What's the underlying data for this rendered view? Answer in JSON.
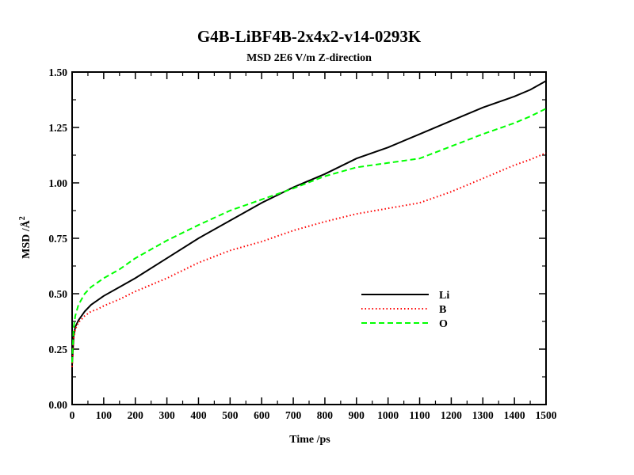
{
  "chart_data": {
    "type": "line",
    "title": "G4B-LiBF4B-2x4x2-v14-0293K",
    "subtitle": "MSD  2E6 V/m Z-direction",
    "xlabel": "Time /ps",
    "ylabel_main": "MSD /Å",
    "ylabel_sup": "2",
    "xlim": [
      0,
      1500
    ],
    "ylim": [
      0,
      1.5
    ],
    "xticks": [
      0,
      100,
      200,
      300,
      400,
      500,
      600,
      700,
      800,
      900,
      1000,
      1100,
      1200,
      1300,
      1400,
      1500
    ],
    "xtick_labels": [
      "0",
      "100",
      "200",
      "300",
      "400",
      "500",
      "600",
      "700",
      "800",
      "900",
      "1000",
      "1100",
      "1200",
      "1300",
      "1400",
      "1500"
    ],
    "yticks": [
      0,
      0.25,
      0.5,
      0.75,
      1.0,
      1.25,
      1.5
    ],
    "ytick_labels": [
      "0.00",
      "0.25",
      "0.50",
      "0.75",
      "1.00",
      "1.25",
      "1.50"
    ],
    "grid": false,
    "legend_position": "right-middle",
    "series": [
      {
        "name": "Li",
        "color": "#000000",
        "dash": "solid",
        "x": [
          0,
          5,
          10,
          20,
          40,
          60,
          80,
          100,
          150,
          200,
          300,
          400,
          500,
          600,
          700,
          800,
          900,
          1000,
          1100,
          1200,
          1300,
          1400,
          1450,
          1500
        ],
        "y": [
          0.18,
          0.31,
          0.35,
          0.38,
          0.42,
          0.45,
          0.47,
          0.49,
          0.53,
          0.57,
          0.66,
          0.75,
          0.83,
          0.91,
          0.98,
          1.04,
          1.11,
          1.16,
          1.22,
          1.28,
          1.34,
          1.39,
          1.42,
          1.46
        ]
      },
      {
        "name": "B",
        "color": "#ff0000",
        "dash": "dotted",
        "x": [
          0,
          5,
          10,
          20,
          40,
          60,
          80,
          100,
          150,
          200,
          300,
          400,
          500,
          600,
          700,
          800,
          900,
          1000,
          1100,
          1200,
          1300,
          1400,
          1450,
          1500
        ],
        "y": [
          0.17,
          0.3,
          0.34,
          0.37,
          0.4,
          0.42,
          0.43,
          0.445,
          0.475,
          0.51,
          0.57,
          0.64,
          0.695,
          0.735,
          0.785,
          0.825,
          0.86,
          0.885,
          0.91,
          0.96,
          1.02,
          1.08,
          1.105,
          1.135
        ]
      },
      {
        "name": "O",
        "color": "#00ff00",
        "dash": "dashed",
        "x": [
          0,
          5,
          10,
          20,
          40,
          60,
          80,
          100,
          150,
          200,
          300,
          400,
          500,
          600,
          700,
          800,
          900,
          1000,
          1100,
          1200,
          1300,
          1400,
          1450,
          1500
        ],
        "y": [
          0.19,
          0.35,
          0.4,
          0.45,
          0.5,
          0.53,
          0.55,
          0.57,
          0.61,
          0.66,
          0.74,
          0.81,
          0.875,
          0.925,
          0.975,
          1.03,
          1.07,
          1.09,
          1.11,
          1.165,
          1.22,
          1.27,
          1.3,
          1.335
        ]
      }
    ]
  }
}
